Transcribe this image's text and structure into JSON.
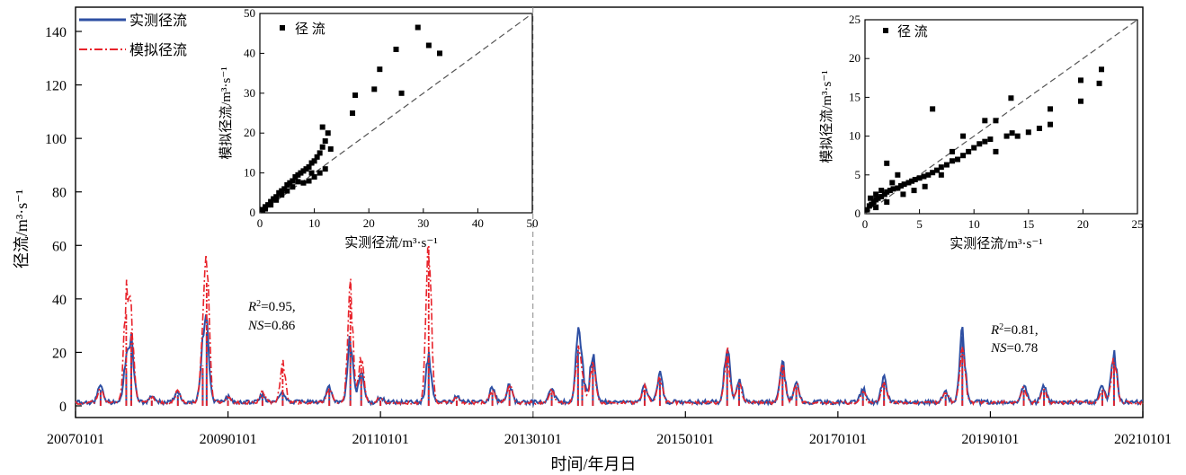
{
  "chart_data": [
    {
      "type": "line",
      "xlabel": "时间/年月日",
      "ylabel": "径流/m³·s⁻¹",
      "ylim": [
        0,
        150
      ],
      "yticks": [
        0,
        20,
        40,
        60,
        80,
        100,
        120,
        140
      ],
      "xticks": [
        "20070101",
        "20090101",
        "20110101",
        "20130101",
        "20150101",
        "20170101",
        "20190101",
        "20210101"
      ],
      "xlim": [
        "2007-01-01",
        "2021-01-01"
      ],
      "divider": "2013-01-01",
      "legend_position": "top-left",
      "colors": {
        "observed": "#2e4fa3",
        "simulated": "#e8232b"
      },
      "series": [
        {
          "name": "实测径流",
          "style": "solid",
          "x": [
            "2007-05-01",
            "2007-09-01",
            "2007-09-25",
            "2008-01-01",
            "2008-05-05",
            "2008-09-01",
            "2008-09-20",
            "2009-01-01",
            "2009-06-15",
            "2009-09-20",
            "2010-05-01",
            "2010-08-10",
            "2010-10-01",
            "2011-01-01",
            "2011-08-20",
            "2012-01-01",
            "2012-06-20",
            "2012-09-10",
            "2013-04-01",
            "2013-08-05",
            "2013-08-25",
            "2013-10-15",
            "2014-06-20",
            "2014-09-01",
            "2015-07-20",
            "2015-09-15",
            "2016-04-10",
            "2016-06-15",
            "2017-05-01",
            "2017-08-10",
            "2018-06-01",
            "2018-08-20",
            "2019-06-10",
            "2019-09-15",
            "2020-06-20",
            "2020-08-15"
          ],
          "y": [
            6,
            13,
            20,
            2,
            4,
            14,
            27,
            2,
            3,
            4,
            6,
            24,
            11,
            2,
            17,
            2,
            5,
            6,
            5,
            21,
            10,
            18,
            6,
            10,
            21,
            8,
            15,
            7,
            5,
            9,
            4,
            26,
            6,
            6,
            6,
            19
          ]
        },
        {
          "name": "模拟径流",
          "style": "dash-dot",
          "x": [
            "2007-05-01",
            "2007-09-01",
            "2007-09-25",
            "2008-01-01",
            "2008-05-05",
            "2008-09-01",
            "2008-09-20",
            "2009-01-01",
            "2009-06-15",
            "2009-09-20",
            "2010-05-01",
            "2010-08-10",
            "2010-10-01",
            "2011-01-01",
            "2011-08-20",
            "2012-01-01",
            "2012-06-20",
            "2012-09-10",
            "2013-04-01",
            "2013-08-05",
            "2013-08-25",
            "2013-10-15",
            "2014-06-20",
            "2014-09-01",
            "2015-07-20",
            "2015-09-15",
            "2016-04-10",
            "2016-06-15",
            "2017-05-01",
            "2017-08-10",
            "2018-06-01",
            "2018-08-20",
            "2019-06-10",
            "2019-09-15",
            "2020-06-20",
            "2020-08-15"
          ],
          "y": [
            5,
            35,
            28,
            2,
            4,
            15,
            46,
            2,
            4,
            14,
            5,
            41,
            17,
            2,
            60,
            2,
            5,
            7,
            5,
            17,
            8,
            15,
            6,
            9,
            18,
            7,
            13,
            7,
            4,
            8,
            4,
            22,
            5,
            5,
            5,
            16
          ]
        }
      ],
      "annotations": [
        {
          "r2_symbol": "R",
          "r2_sup": "2",
          "r2_value": "=0.95,",
          "ns_symbol": "NS",
          "ns_value": "=0.86"
        },
        {
          "r2_symbol": "R",
          "r2_sup": "2",
          "r2_value": "=0.81,",
          "ns_symbol": "NS",
          "ns_value": "=0.78"
        }
      ]
    },
    {
      "type": "scatter",
      "xlabel": "实测径流/m³·s⁻¹",
      "ylabel": "模拟径流/m³·s⁻¹",
      "legend": "径 流",
      "legend_position": "top-left",
      "xlim": [
        0,
        50
      ],
      "ylim": [
        0,
        50
      ],
      "xticks": [
        0,
        10,
        20,
        30,
        40,
        50
      ],
      "yticks": [
        0,
        10,
        20,
        30,
        40,
        50
      ],
      "reference_line": "1:1 dashed",
      "points": [
        [
          0.5,
          0.8
        ],
        [
          1,
          1.5
        ],
        [
          1.5,
          2
        ],
        [
          2,
          2.8
        ],
        [
          2.5,
          3.5
        ],
        [
          3,
          4
        ],
        [
          3.5,
          5
        ],
        [
          4,
          5.5
        ],
        [
          4.5,
          6
        ],
        [
          5,
          7
        ],
        [
          5.5,
          7.5
        ],
        [
          6,
          8
        ],
        [
          6.5,
          9
        ],
        [
          7,
          9.5
        ],
        [
          7.5,
          10
        ],
        [
          8,
          10.5
        ],
        [
          8.5,
          11
        ],
        [
          9,
          11.5
        ],
        [
          9.5,
          12.5
        ],
        [
          10,
          13
        ],
        [
          10.5,
          14
        ],
        [
          11,
          15
        ],
        [
          11.5,
          16.5
        ],
        [
          12,
          18
        ],
        [
          12.5,
          20
        ],
        [
          11.5,
          21.5
        ],
        [
          13,
          16
        ],
        [
          10,
          9
        ],
        [
          9,
          8
        ],
        [
          8,
          7.5
        ],
        [
          7,
          7.8
        ],
        [
          6,
          6.5
        ],
        [
          5,
          5.5
        ],
        [
          4,
          4.5
        ],
        [
          3,
          3.2
        ],
        [
          2,
          2
        ],
        [
          1,
          1
        ],
        [
          12,
          11
        ],
        [
          11,
          10
        ],
        [
          9.5,
          10
        ],
        [
          17,
          25
        ],
        [
          17.5,
          29.5
        ],
        [
          21,
          31
        ],
        [
          22,
          36
        ],
        [
          25,
          41
        ],
        [
          26,
          30
        ],
        [
          29,
          46.5
        ],
        [
          31,
          42
        ],
        [
          33,
          40
        ]
      ]
    },
    {
      "type": "scatter",
      "xlabel": "实测径流/m³·s⁻¹",
      "ylabel": "模拟径流/m³·s⁻¹",
      "legend": "径 流",
      "legend_position": "top-left",
      "xlim": [
        0,
        25
      ],
      "ylim": [
        0,
        25
      ],
      "xticks": [
        0,
        5,
        10,
        15,
        20,
        25
      ],
      "yticks": [
        0,
        5,
        10,
        15,
        20,
        25
      ],
      "reference_line": "1:1 dashed",
      "points": [
        [
          0.2,
          0.5
        ],
        [
          0.4,
          1
        ],
        [
          0.6,
          1.2
        ],
        [
          0.8,
          1.5
        ],
        [
          1,
          1.8
        ],
        [
          1.2,
          2
        ],
        [
          1.5,
          2.2
        ],
        [
          1.8,
          2.5
        ],
        [
          2,
          2.8
        ],
        [
          2.3,
          3
        ],
        [
          2.6,
          3.2
        ],
        [
          3,
          3.3
        ],
        [
          3.3,
          3.6
        ],
        [
          3.6,
          3.8
        ],
        [
          4,
          4
        ],
        [
          4.3,
          4.2
        ],
        [
          4.6,
          4.4
        ],
        [
          5,
          4.6
        ],
        [
          5.4,
          4.8
        ],
        [
          5.8,
          5
        ],
        [
          6.2,
          5.3
        ],
        [
          6.6,
          5.6
        ],
        [
          7,
          6
        ],
        [
          7.5,
          6.3
        ],
        [
          8,
          6.8
        ],
        [
          8.5,
          7
        ],
        [
          9,
          7.5
        ],
        [
          9.5,
          8
        ],
        [
          10,
          8.5
        ],
        [
          10.5,
          9
        ],
        [
          11,
          9.3
        ],
        [
          11.5,
          9.6
        ],
        [
          12,
          8
        ],
        [
          13,
          10
        ],
        [
          13.5,
          10.4
        ],
        [
          14,
          10
        ],
        [
          15,
          10.5
        ],
        [
          16,
          11
        ],
        [
          17,
          11.5
        ],
        [
          17,
          13.5
        ],
        [
          19.8,
          14.5
        ],
        [
          19.8,
          17.2
        ],
        [
          21.5,
          16.8
        ],
        [
          21.7,
          18.6
        ],
        [
          6.2,
          13.5
        ],
        [
          13.4,
          14.9
        ],
        [
          11,
          12
        ],
        [
          12,
          12
        ],
        [
          2,
          6.5
        ],
        [
          3,
          5
        ],
        [
          2.5,
          4
        ],
        [
          1.5,
          3
        ],
        [
          1,
          2.5
        ],
        [
          0.5,
          2
        ],
        [
          9,
          10
        ],
        [
          8,
          8
        ],
        [
          3.5,
          2.5
        ],
        [
          4.5,
          3
        ],
        [
          5.5,
          3.5
        ],
        [
          1,
          0.8
        ],
        [
          2,
          1.5
        ],
        [
          7,
          5
        ]
      ]
    }
  ]
}
